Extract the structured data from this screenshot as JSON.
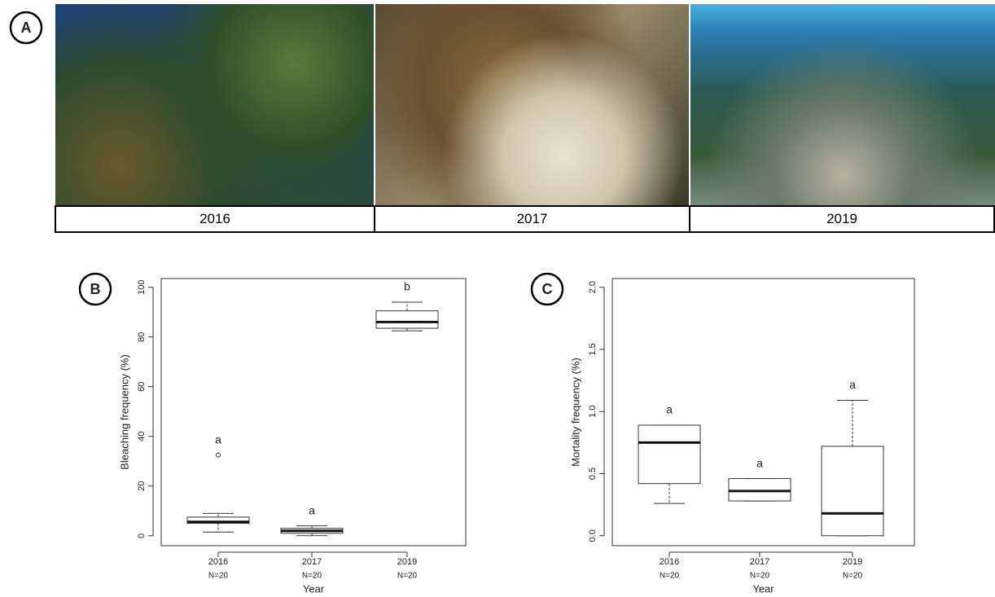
{
  "panels": {
    "a": "A",
    "b": "B",
    "c": "C"
  },
  "photos": [
    "2016",
    "2017",
    "2019"
  ],
  "chart_data": [
    {
      "type": "box",
      "ylabel": "Bleaching frequency (%)",
      "xlabel": "Year",
      "categories": [
        "2016",
        "2017",
        "2019"
      ],
      "counts": [
        "N=20",
        "N=20",
        "N=20"
      ],
      "whisker_low": [
        1.5,
        0,
        82.5
      ],
      "q1": [
        5,
        1,
        83.5
      ],
      "median": [
        5.6,
        2,
        86
      ],
      "q3": [
        7.5,
        3,
        90.5
      ],
      "whisker_high": [
        9,
        4,
        94
      ],
      "outliers": [
        [
          32.5
        ],
        [],
        []
      ],
      "letters": [
        "a",
        "a",
        "b"
      ],
      "ylim": [
        -4,
        103.5
      ],
      "yticks": [
        0,
        20,
        40,
        60,
        80,
        100
      ]
    },
    {
      "type": "box",
      "ylabel": "Mortality frequency (%)",
      "xlabel": "Year",
      "categories": [
        "2016",
        "2017",
        "2019"
      ],
      "counts": [
        "N=20",
        "N=20",
        "N=20"
      ],
      "whisker_low": [
        0.26,
        0.28,
        0
      ],
      "q1": [
        0.42,
        0.28,
        0
      ],
      "median": [
        0.75,
        0.36,
        0.18
      ],
      "q3": [
        0.89,
        0.46,
        0.72
      ],
      "whisker_high": [
        0.89,
        0.46,
        1.09
      ],
      "outliers": [
        [],
        [],
        []
      ],
      "letters": [
        "a",
        "a",
        "a"
      ],
      "ylim": [
        -0.08,
        2.07
      ],
      "yticks": [
        {
          "value": 0,
          "label": "0.0"
        },
        {
          "value": 0.5,
          "label": "0.5"
        },
        {
          "value": 1,
          "label": "1.0"
        },
        {
          "value": 1.5,
          "label": "1.5"
        },
        {
          "value": 2,
          "label": "2.0"
        }
      ]
    }
  ]
}
